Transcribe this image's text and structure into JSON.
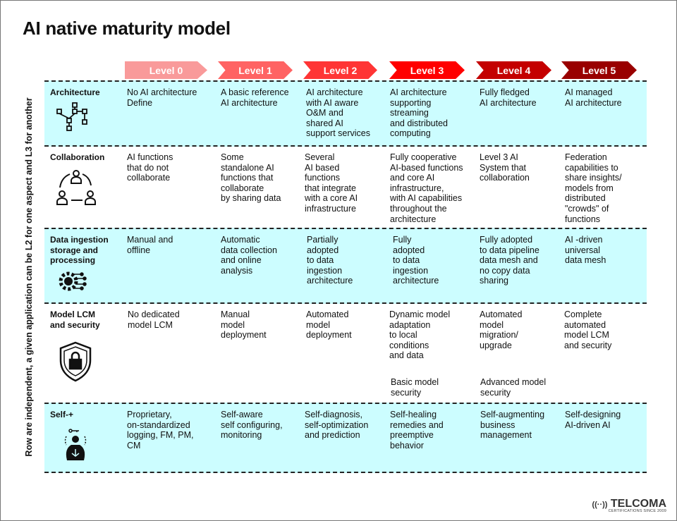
{
  "title": "AI native maturity model",
  "side_note": "Row are independent, a given application can be L2 for one aspect and L3 for another",
  "levels": [
    {
      "label": "Level 0",
      "color": "#f99a9a"
    },
    {
      "label": "Level 1",
      "color": "#ff6363"
    },
    {
      "label": "Level 2",
      "color": "#ff3535"
    },
    {
      "label": "Level 3",
      "color": "#ff0000"
    },
    {
      "label": "Level 4",
      "color": "#c40000"
    },
    {
      "label": "Level 5",
      "color": "#990000"
    }
  ],
  "rows": [
    {
      "label": "Architecture",
      "icon": "architecture-hierarchy-icon",
      "cells": [
        "No AI architecture\nDefine",
        "A basic reference\nAI architecture",
        "AI architecture\nwith AI aware\nO&M and\nshared AI\nsupport services",
        "AI architecture\nsupporting\nstreaming\nand distributed\ncomputing",
        "Fully fledged\nAI architecture",
        "AI managed\nAI architecture"
      ]
    },
    {
      "label": "Collaboration",
      "icon": "team-collaboration-icon",
      "cells": [
        "AI functions\nthat do not\ncollaborate",
        "Some\nstandalone AI\nfunctions that\ncollaborate\nby sharing  data",
        "Several\nAI based\nfunctions\nthat integrate\nwith a core AI\ninfrastructure",
        "Fully cooperative\nAI-based functions\nand core AI\ninfrastructure,\nwith AI capabilities\nthroughout the\narchitecture",
        "Level 3 AI\nSystem that\ncollaboration",
        "Federation\ncapabilities to\nshare insights/\nmodels from\ndistributed\n\"crowds\" of\nfunctions"
      ]
    },
    {
      "label": "Data ingestion\nstorage and\nprocessing",
      "icon": "data-processing-gear-icon",
      "cells": [
        "Manual and\noffline",
        "Automatic\ndata collection\nand online\nanalysis",
        "Partially\nadopted\nto data\ningestion\narchitecture",
        "Fully\nadopted\nto data\ningestion\narchitecture",
        "Fully adopted\nto data pipeline\ndata mesh and\nno copy data\nsharing",
        "AI -driven\nuniversal\ndata mesh"
      ]
    },
    {
      "label": "Model LCM\nand security",
      "icon": "security-shield-lock-icon",
      "cells": [
        "No dedicated\nmodel LCM",
        "Manual\nmodel\ndeployment",
        "Automated\nmodel\ndeployment",
        "Dynamic model\nadaptation\nto local\nconditions\nand data",
        "Automated\nmodel\nmigration/\nupgrade",
        "Complete\nautomated\nmodel LCM\nand security"
      ],
      "extra": [
        "Basic model\nsecurity",
        "Advanced model\nsecurity"
      ]
    },
    {
      "label": "Self-+",
      "icon": "self-meditation-key-icon",
      "cells": [
        "Proprietary,\non-standardized\nlogging, FM, PM,\nCM",
        "Self-aware\nself configuring,\nmonitoring",
        "Self-diagnosis,\nself-optimization\nand prediction",
        "Self-healing\nremedies and\npreemptive\nbehavior",
        "Self-augmenting\nbusiness\nmanagement",
        "Self-designing\nAI-driven AI"
      ]
    }
  ],
  "logo": {
    "name": "TELCOMA",
    "tagline": "CERTIFICATIONS SINCE 2009"
  }
}
